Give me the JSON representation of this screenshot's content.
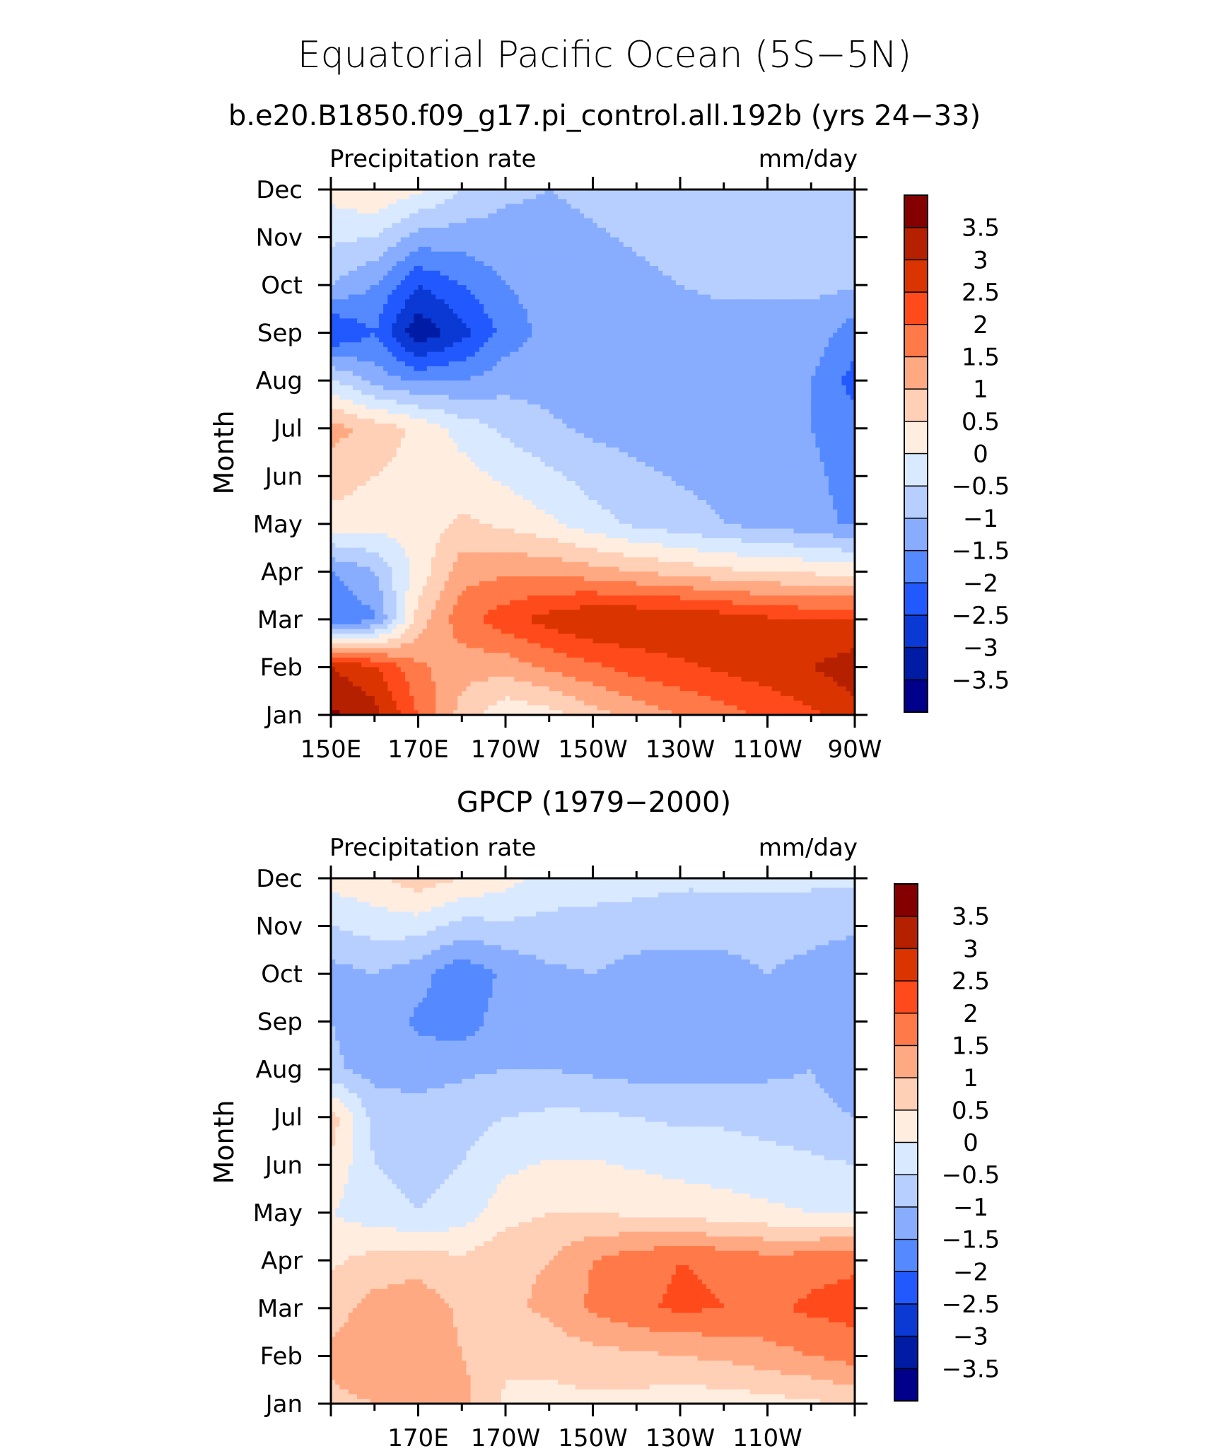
{
  "figure": {
    "title": "Equatorial Pacific Ocean (5S−5N)",
    "subtitle": "b.e20.B1850.f09_g17.pi_control.all.192b (yrs 24−33)"
  },
  "colorbar": {
    "labels": [
      "3.5",
      "3",
      "2.5",
      "2",
      "1.5",
      "1",
      "0.5",
      "0",
      "−0.5",
      "−1",
      "−1.5",
      "−2",
      "−2.5",
      "−3",
      "−3.5"
    ],
    "colors_top_to_bottom": [
      "#840000",
      "#b52000",
      "#da3400",
      "#ff4b1c",
      "#ff7a48",
      "#ffa983",
      "#ffcfb6",
      "#ffede0",
      "#d9e9ff",
      "#b7cfff",
      "#88adff",
      "#5589ff",
      "#2259ff",
      "#0a39d4",
      "#001ca5",
      "#00008a"
    ]
  },
  "chart_data": [
    {
      "type": "heatmap",
      "title": "",
      "left_label": "Precipitation rate",
      "right_label": "mm/day",
      "ylabel": "Month",
      "xlabel": "",
      "x_tick_labels": [
        "150E",
        "170E",
        "170W",
        "150W",
        "130W",
        "110W",
        "90W"
      ],
      "y_tick_labels": [
        "Jan",
        "Feb",
        "Mar",
        "Apr",
        "May",
        "Jun",
        "Jul",
        "Aug",
        "Sep",
        "Oct",
        "Nov",
        "Dec"
      ],
      "x_lon_range": [
        150,
        270
      ],
      "x": [
        150,
        160,
        170,
        180,
        190,
        200,
        210,
        220,
        230,
        240,
        250,
        260,
        270
      ],
      "levels": [
        -3.5,
        -3,
        -2.5,
        -2,
        -1.5,
        -1,
        -0.5,
        0,
        0.5,
        1,
        1.5,
        2,
        2.5,
        3,
        3.5
      ],
      "z": [
        [
          3.6,
          3.2,
          2.0,
          0.8,
          0.1,
          0.3,
          0.8,
          1.2,
          1.5,
          1.8,
          2.1,
          2.4,
          2.8
        ],
        [
          3.0,
          2.6,
          1.6,
          1.2,
          1.2,
          1.6,
          1.9,
          2.2,
          2.4,
          2.6,
          2.8,
          3.0,
          3.3
        ],
        [
          -2.0,
          -1.6,
          0.7,
          1.8,
          2.3,
          2.7,
          3.0,
          3.0,
          3.0,
          2.8,
          2.6,
          2.5,
          2.5
        ],
        [
          -1.5,
          -1.0,
          0.2,
          1.3,
          1.4,
          1.4,
          1.2,
          1.0,
          0.8,
          0.6,
          0.5,
          0.4,
          0.3
        ],
        [
          0.3,
          0.2,
          0.2,
          0.6,
          0.4,
          0.1,
          -0.3,
          -0.6,
          -0.8,
          -1.0,
          -1.2,
          -1.3,
          -1.6
        ],
        [
          1.2,
          0.8,
          0.4,
          -0.2,
          -0.6,
          -0.9,
          -1.1,
          -1.2,
          -1.3,
          -1.3,
          -1.4,
          -1.5,
          -1.8
        ],
        [
          -0.4,
          -1.2,
          -1.6,
          -1.5,
          -1.2,
          -1.2,
          -1.3,
          -1.4,
          -1.5,
          -1.5,
          -1.5,
          -1.5,
          -2.2
        ],
        [
          -2.6,
          -2.0,
          -3.4,
          -2.7,
          -1.8,
          -1.3,
          -1.2,
          -1.2,
          -1.2,
          -1.2,
          -1.2,
          -1.2,
          -1.8
        ],
        [
          -1.0,
          -1.5,
          -2.5,
          -2.0,
          -1.5,
          -1.3,
          -1.2,
          -1.1,
          -1.0,
          -0.9,
          -0.9,
          -0.9,
          -0.9
        ],
        [
          0.2,
          0.5,
          0.1,
          -0.5,
          -0.9,
          -1.0,
          -0.9,
          -0.8,
          -0.7,
          -0.6,
          -0.6,
          -0.6,
          -0.7
        ]
      ],
      "z_row_months": [
        "Jan",
        "Feb",
        "Mar",
        "Apr",
        "May",
        "Jul",
        "Aug",
        "Sep",
        "Oct",
        "Dec"
      ],
      "z_row_month_index": [
        0,
        1,
        2,
        3,
        4,
        6,
        7,
        8,
        9,
        11
      ]
    },
    {
      "type": "heatmap",
      "title": "GPCP (1979−2000)",
      "left_label": "Precipitation rate",
      "right_label": "mm/day",
      "ylabel": "Month",
      "xlabel": "",
      "x_tick_labels": [
        "170E",
        "170W",
        "150W",
        "130W",
        "110W"
      ],
      "y_tick_labels": [
        "Jan",
        "Feb",
        "Mar",
        "Apr",
        "May",
        "Jun",
        "Jul",
        "Aug",
        "Sep",
        "Oct",
        "Nov",
        "Dec"
      ],
      "x_lon_range": [
        150,
        270
      ],
      "x": [
        150,
        160,
        170,
        180,
        190,
        200,
        210,
        220,
        230,
        240,
        250,
        260,
        270
      ],
      "levels": [
        -3.5,
        -3,
        -2.5,
        -2,
        -1.5,
        -1,
        -0.5,
        0,
        0.5,
        1,
        1.5,
        2,
        2.5,
        3,
        3.5
      ],
      "z": [
        [
          0.9,
          1.0,
          1.3,
          1.2,
          0.4,
          0.3,
          0.4,
          0.3,
          0.2,
          0.2,
          0.3,
          0.4,
          0.6
        ],
        [
          1.1,
          1.3,
          1.4,
          1.0,
          0.6,
          0.7,
          0.8,
          0.9,
          1.0,
          1.1,
          1.3,
          1.5,
          1.7
        ],
        [
          0.8,
          1.2,
          1.3,
          0.9,
          0.9,
          1.1,
          1.6,
          1.9,
          2.1,
          2.0,
          1.9,
          2.1,
          2.2
        ],
        [
          0.4,
          0.7,
          0.8,
          0.6,
          0.9,
          1.0,
          1.5,
          1.8,
          2.0,
          1.9,
          1.7,
          1.8,
          1.9
        ],
        [
          0.0,
          -0.3,
          -0.5,
          -0.3,
          0.3,
          0.5,
          0.5,
          0.4,
          0.3,
          0.2,
          0.1,
          0.0,
          0.0
        ],
        [
          0.8,
          -0.7,
          -0.8,
          -0.7,
          -0.5,
          -0.4,
          -0.4,
          -0.5,
          -0.6,
          -0.6,
          -0.7,
          -0.8,
          -1.0
        ],
        [
          -0.9,
          -1.2,
          -1.2,
          -1.1,
          -1.0,
          -1.0,
          -1.1,
          -1.2,
          -1.2,
          -1.2,
          -1.1,
          -1.0,
          -1.4
        ],
        [
          -1.0,
          -1.2,
          -1.6,
          -1.8,
          -1.2,
          -1.0,
          -1.2,
          -1.4,
          -1.4,
          -1.3,
          -1.0,
          -1.1,
          -1.3
        ],
        [
          -1.2,
          -1.0,
          -1.3,
          -1.9,
          -1.4,
          -1.1,
          -1.0,
          -1.2,
          -1.2,
          -1.2,
          -1.0,
          -1.2,
          -1.4
        ],
        [
          0.2,
          0.4,
          0.8,
          0.5,
          0.2,
          -0.2,
          -0.3,
          -0.3,
          -0.4,
          -0.4,
          -0.4,
          -0.4,
          -0.4
        ]
      ],
      "z_row_months": [
        "Jan",
        "Feb",
        "Mar",
        "Apr",
        "May",
        "Jul",
        "Aug",
        "Sep",
        "Oct",
        "Dec"
      ],
      "z_row_month_index": [
        0,
        1,
        2,
        3,
        4,
        6,
        7,
        8,
        9,
        11
      ]
    }
  ]
}
